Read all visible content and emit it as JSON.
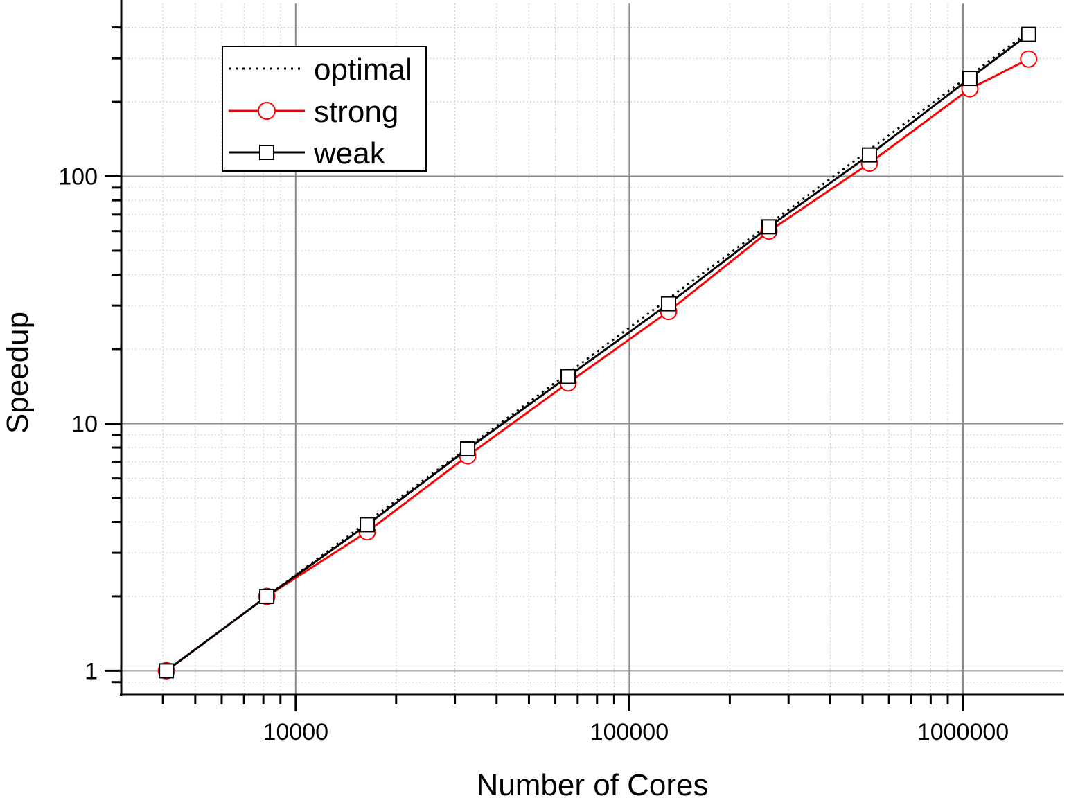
{
  "chart_data": {
    "type": "line",
    "title": "",
    "xlabel": "Number of Cores",
    "ylabel": "Speedup",
    "x_scale": "log",
    "y_scale": "log",
    "xlim": [
      3000,
      2000000
    ],
    "ylim": [
      0.8,
      500
    ],
    "x_ticks": [
      10000,
      100000,
      1000000
    ],
    "x_tick_labels": [
      "10000",
      "100000",
      "1000000"
    ],
    "y_ticks": [
      1,
      10,
      100
    ],
    "y_tick_labels": [
      "1",
      "10",
      "100"
    ],
    "grid": true,
    "legend_position": "top-left",
    "series": [
      {
        "name": "optimal",
        "style": "dotted",
        "color": "#000000",
        "marker": "none",
        "x": [
          4096,
          8192,
          16384,
          32768,
          65536,
          131072,
          262144,
          524288,
          1048576,
          1572864
        ],
        "y": [
          1,
          2,
          4,
          8,
          16,
          32,
          64,
          128,
          256,
          384
        ]
      },
      {
        "name": "strong",
        "style": "solid",
        "color": "#ff0000",
        "marker": "circle",
        "x": [
          4096,
          8192,
          16384,
          32768,
          65536,
          131072,
          262144,
          524288,
          1048576,
          1572864
        ],
        "y": [
          1,
          2,
          3.65,
          7.4,
          14.6,
          28.4,
          60,
          113,
          226,
          298
        ]
      },
      {
        "name": "weak",
        "style": "solid",
        "color": "#000000",
        "marker": "square",
        "x": [
          4096,
          8192,
          16384,
          32768,
          65536,
          131072,
          262144,
          524288,
          1048576,
          1572864
        ],
        "y": [
          1,
          2,
          3.9,
          7.9,
          15.5,
          30.5,
          62.5,
          122,
          249,
          375
        ]
      }
    ]
  }
}
